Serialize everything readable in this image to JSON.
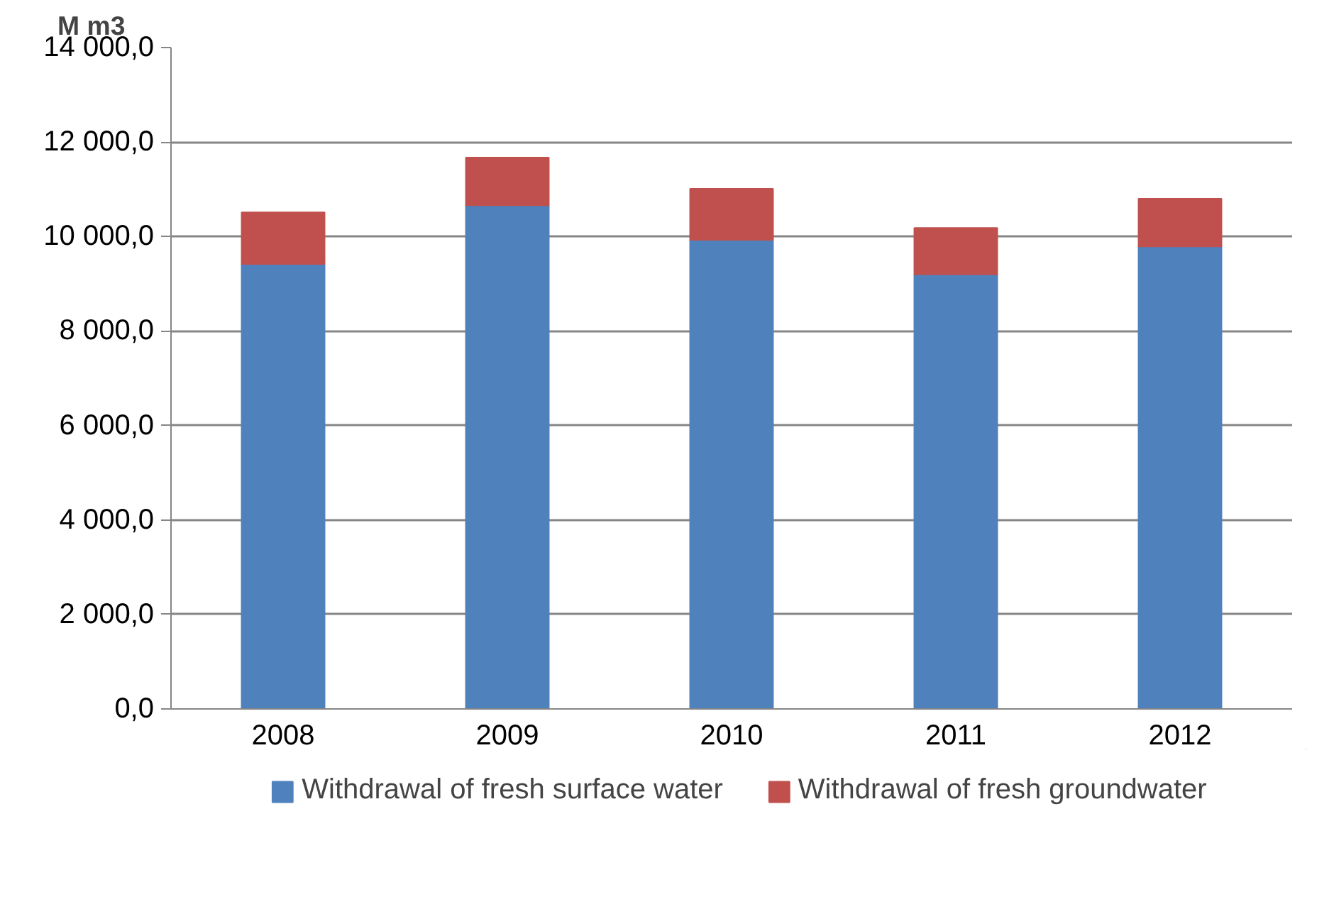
{
  "chart_data": {
    "type": "bar",
    "stacked": true,
    "ylabel": "M m3",
    "categories": [
      "2008",
      "2009",
      "2010",
      "2011",
      "2012"
    ],
    "series": [
      {
        "name": "Withdrawal of fresh surface water",
        "color": "#4f81bd",
        "values": [
          9420,
          10660,
          9930,
          9200,
          9790
        ]
      },
      {
        "name": "Withdrawal of fresh groundwater",
        "color": "#c0504d",
        "values": [
          1090,
          1010,
          1080,
          980,
          1010
        ]
      }
    ],
    "ylim": [
      0,
      14000
    ],
    "yticks": [
      {
        "value": 0,
        "label": "0,0"
      },
      {
        "value": 2000,
        "label": "2 000,0"
      },
      {
        "value": 4000,
        "label": "4 000,0"
      },
      {
        "value": 6000,
        "label": "6 000,0"
      },
      {
        "value": 8000,
        "label": "8 000,0"
      },
      {
        "value": 10000,
        "label": "10 000,0"
      },
      {
        "value": 12000,
        "label": "12 000,0"
      },
      {
        "value": 14000,
        "label": "14 000,0"
      }
    ],
    "grid": "y",
    "legend": "bottom"
  }
}
